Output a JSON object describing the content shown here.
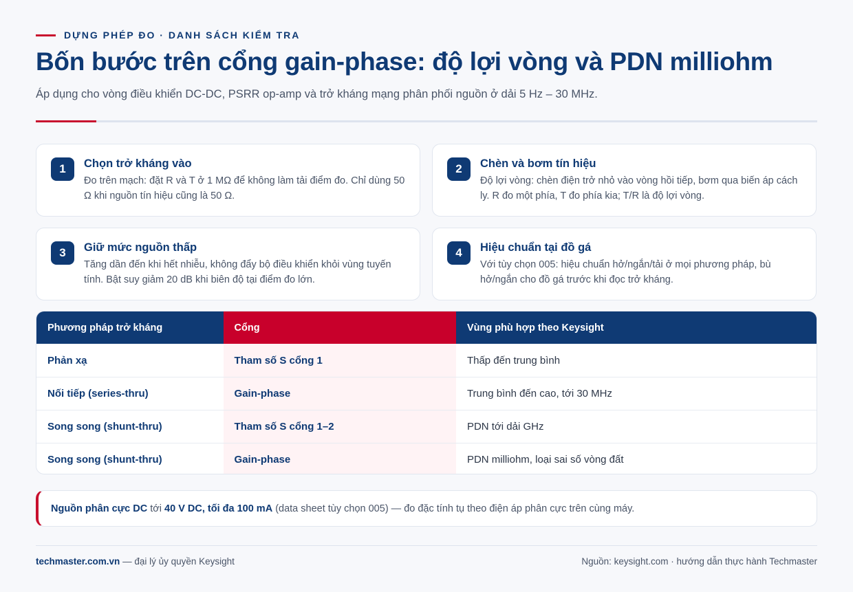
{
  "eyebrow": "DỰNG PHÉP ĐO · DANH SÁCH KIỂM TRA",
  "title": "Bốn bước trên cổng gain-phase: độ lợi vòng và PDN milliohm",
  "subtitle": "Áp dụng cho vòng điều khiển DC-DC, PSRR op-amp và trở kháng mạng phân phối nguồn ở dải 5 Hz – 30 MHz.",
  "steps": [
    {
      "num": "1",
      "title": "Chọn trở kháng vào",
      "body": "Đo trên mạch: đặt R và T ở 1 MΩ để không làm tải điểm đo. Chỉ dùng 50 Ω khi nguồn tín hiệu cũng là 50 Ω."
    },
    {
      "num": "2",
      "title": "Chèn và bơm tín hiệu",
      "body": "Độ lợi vòng: chèn điện trở nhỏ vào vòng hồi tiếp, bơm qua biến áp cách ly. R đo một phía, T đo phía kia; T/R là độ lợi vòng."
    },
    {
      "num": "3",
      "title": "Giữ mức nguồn thấp",
      "body": "Tăng dần đến khi hết nhiễu, không đẩy bộ điều khiển khỏi vùng tuyến tính. Bật suy giảm 20 dB khi biên độ tại điểm đo lớn."
    },
    {
      "num": "4",
      "title": "Hiệu chuẩn tại đồ gá",
      "body": "Với tùy chọn 005: hiệu chuẩn hở/ngắn/tải ở mọi phương pháp, bù hở/ngắn cho đồ gá trước khi đọc trở kháng."
    }
  ],
  "table": {
    "headers": [
      "Phương pháp trở kháng",
      "Cổng",
      "Vùng phù hợp theo Keysight"
    ],
    "rows": [
      [
        "Phản xạ",
        "Tham số S cổng 1",
        "Thấp đến trung bình"
      ],
      [
        "Nối tiếp (series-thru)",
        "Gain-phase",
        "Trung bình đến cao, tới 30 MHz"
      ],
      [
        "Song song (shunt-thru)",
        "Tham số S cổng 1–2",
        "PDN tới dải GHz"
      ],
      [
        "Song song (shunt-thru)",
        "Gain-phase",
        "PDN milliohm, loại sai số vòng đất"
      ]
    ]
  },
  "note": {
    "strong1": "Nguồn phân cực DC",
    "text1": " tới ",
    "strong2": "40 V DC, tối đa 100 mA",
    "text2": " (data sheet tùy chọn 005) — đo đặc tính tụ theo điện áp phân cực trên cùng máy."
  },
  "footer": {
    "site": "techmaster.com.vn",
    "tagline": " — đại lý ủy quyền Keysight",
    "source": "Nguồn: keysight.com · hướng dẫn thực hành Techmaster"
  },
  "colors": {
    "navy": "#0f3a74",
    "red": "#c8102e",
    "header_red": "#c8002b"
  }
}
